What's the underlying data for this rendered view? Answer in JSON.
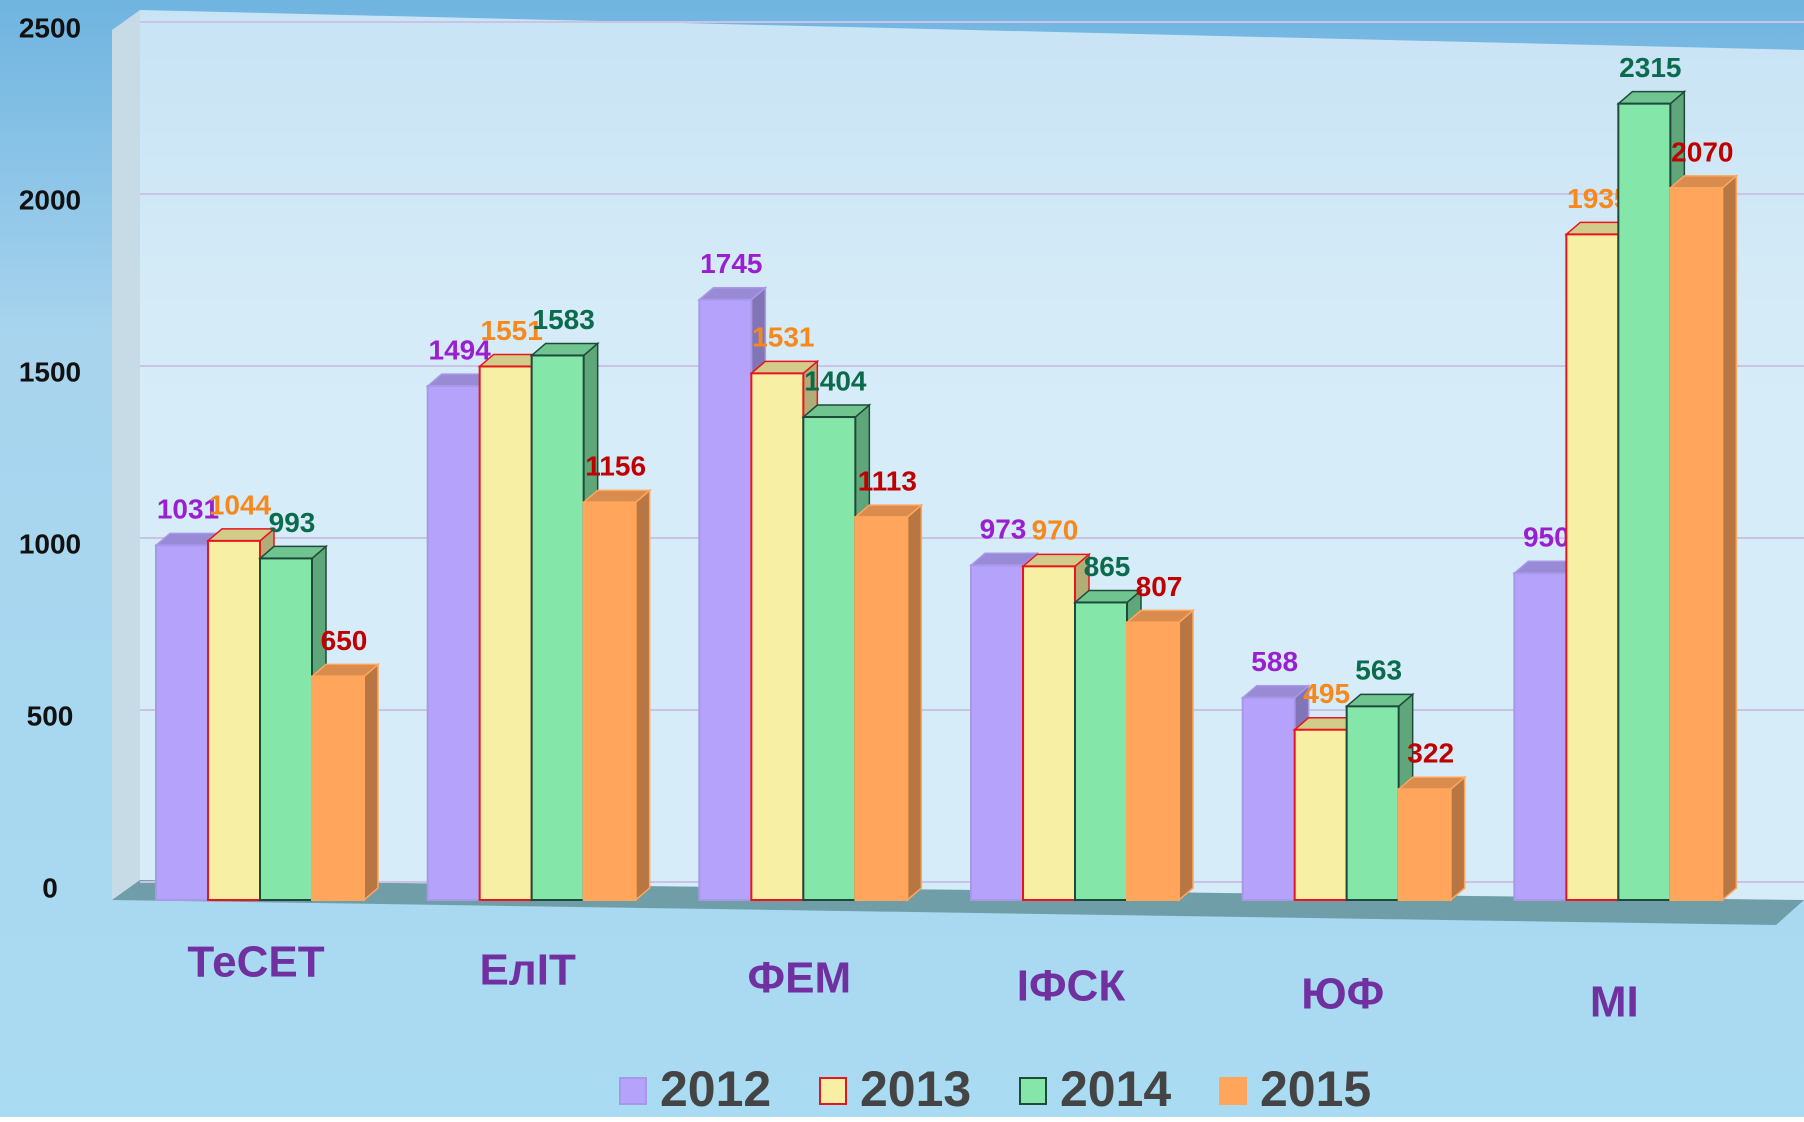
{
  "chart_data": {
    "type": "bar3d",
    "categories": [
      "ТеСЕТ",
      "ЕлІТ",
      "ФЕМ",
      "ІФСК",
      "ЮФ",
      "МІ"
    ],
    "series": [
      {
        "name": "2012",
        "color": "#b4a2fb",
        "edge_color": "#a898e8",
        "label_color": "#9a1fd0",
        "values": [
          1031,
          1494,
          1745,
          973,
          588,
          950
        ]
      },
      {
        "name": "2013",
        "color": "#f7f0a4",
        "edge_color": "#e8141e",
        "label_color": "#f7881c",
        "values": [
          1044,
          1551,
          1531,
          970,
          495,
          1935
        ]
      },
      {
        "name": "2014",
        "color": "#84e6a9",
        "edge_color": "#1e4a3a",
        "label_color": "#0b6b4c",
        "values": [
          993,
          1583,
          1404,
          865,
          563,
          2315
        ]
      },
      {
        "name": "2015",
        "color": "#ffa55c",
        "edge_color": "#ffa55c",
        "label_color": "#c00000",
        "values": [
          650,
          1156,
          1113,
          807,
          322,
          2070
        ]
      }
    ],
    "ylim": [
      0,
      2500
    ],
    "yticks": [
      0,
      500,
      1000,
      1500,
      2000,
      2500
    ],
    "grid": true,
    "legend": "bottom"
  }
}
